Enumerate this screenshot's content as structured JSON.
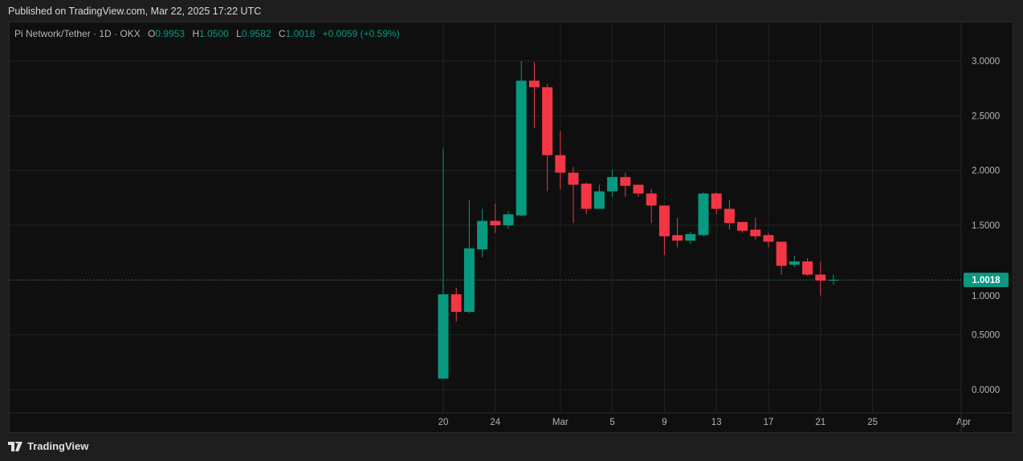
{
  "published": "Published on TradingView.com, Mar 22, 2025 17:22 UTC",
  "legend": {
    "symbol": "Pi Network/Tether · 1D · OKX",
    "o_label": "O",
    "o": "0.9953",
    "h_label": "H",
    "h": "1.0500",
    "l_label": "L",
    "l": "0.9582",
    "c_label": "C",
    "c": "1.0018",
    "change": "+0.0059 (+0.59%)"
  },
  "footer": {
    "brand": "TradingView"
  },
  "colors": {
    "up": "#089981",
    "down": "#f23645",
    "grid": "#222222",
    "bg": "#0f0f0f"
  },
  "chart_data": {
    "type": "candlestick",
    "title": "Pi Network/Tether · 1D · OKX",
    "ylim": [
      0,
      3
    ],
    "y_ticks": [
      "3.0000",
      "2.5000",
      "2.0000",
      "1.5000",
      "1.0000",
      "0.5000",
      "0.0000"
    ],
    "y_tick_values": [
      3,
      2.5,
      2,
      1.5,
      1,
      0.5,
      0
    ],
    "x_ticks": [
      {
        "label": "20",
        "day": 0
      },
      {
        "label": "24",
        "day": 4
      },
      {
        "label": "Mar",
        "day": 9
      },
      {
        "label": "5",
        "day": 13
      },
      {
        "label": "9",
        "day": 17
      },
      {
        "label": "13",
        "day": 21
      },
      {
        "label": "17",
        "day": 25
      },
      {
        "label": "21",
        "day": 29
      },
      {
        "label": "25",
        "day": 33
      },
      {
        "label": "Apr",
        "day": 40
      }
    ],
    "last_price": "1.0018",
    "last_price_value": 1.0018,
    "candles": [
      {
        "date": "Feb 20",
        "o": 0.1,
        "h": 2.2,
        "l": 0.1,
        "c": 0.87
      },
      {
        "date": "Feb 21",
        "o": 0.87,
        "h": 0.93,
        "l": 0.62,
        "c": 0.71
      },
      {
        "date": "Feb 22",
        "o": 0.71,
        "h": 1.73,
        "l": 0.7,
        "c": 1.29
      },
      {
        "date": "Feb 23",
        "o": 1.28,
        "h": 1.65,
        "l": 1.21,
        "c": 1.54
      },
      {
        "date": "Feb 24",
        "o": 1.54,
        "h": 1.7,
        "l": 1.43,
        "c": 1.5
      },
      {
        "date": "Feb 25",
        "o": 1.5,
        "h": 1.63,
        "l": 1.47,
        "c": 1.6
      },
      {
        "date": "Feb 26",
        "o": 1.59,
        "h": 3.0,
        "l": 1.58,
        "c": 2.82
      },
      {
        "date": "Feb 27",
        "o": 2.82,
        "h": 2.99,
        "l": 2.39,
        "c": 2.76
      },
      {
        "date": "Feb 28",
        "o": 2.76,
        "h": 2.79,
        "l": 1.81,
        "c": 2.14
      },
      {
        "date": "Mar 1",
        "o": 2.14,
        "h": 2.36,
        "l": 1.83,
        "c": 1.98
      },
      {
        "date": "Mar 2",
        "o": 1.98,
        "h": 2.03,
        "l": 1.52,
        "c": 1.87
      },
      {
        "date": "Mar 3",
        "o": 1.88,
        "h": 1.89,
        "l": 1.6,
        "c": 1.65
      },
      {
        "date": "Mar 4",
        "o": 1.65,
        "h": 1.87,
        "l": 1.65,
        "c": 1.81
      },
      {
        "date": "Mar 5",
        "o": 1.81,
        "h": 2.01,
        "l": 1.76,
        "c": 1.94
      },
      {
        "date": "Mar 6",
        "o": 1.94,
        "h": 1.98,
        "l": 1.76,
        "c": 1.86
      },
      {
        "date": "Mar 7",
        "o": 1.87,
        "h": 1.87,
        "l": 1.76,
        "c": 1.79
      },
      {
        "date": "Mar 8",
        "o": 1.79,
        "h": 1.83,
        "l": 1.52,
        "c": 1.68
      },
      {
        "date": "Mar 9",
        "o": 1.68,
        "h": 1.68,
        "l": 1.23,
        "c": 1.4
      },
      {
        "date": "Mar 10",
        "o": 1.41,
        "h": 1.57,
        "l": 1.3,
        "c": 1.36
      },
      {
        "date": "Mar 11",
        "o": 1.36,
        "h": 1.44,
        "l": 1.33,
        "c": 1.42
      },
      {
        "date": "Mar 12",
        "o": 1.41,
        "h": 1.8,
        "l": 1.4,
        "c": 1.79
      },
      {
        "date": "Mar 13",
        "o": 1.79,
        "h": 1.8,
        "l": 1.6,
        "c": 1.65
      },
      {
        "date": "Mar 14",
        "o": 1.65,
        "h": 1.73,
        "l": 1.46,
        "c": 1.52
      },
      {
        "date": "Mar 15",
        "o": 1.53,
        "h": 1.53,
        "l": 1.43,
        "c": 1.45
      },
      {
        "date": "Mar 16",
        "o": 1.46,
        "h": 1.57,
        "l": 1.37,
        "c": 1.4
      },
      {
        "date": "Mar 17",
        "o": 1.41,
        "h": 1.43,
        "l": 1.3,
        "c": 1.35
      },
      {
        "date": "Mar 18",
        "o": 1.35,
        "h": 1.35,
        "l": 1.05,
        "c": 1.13
      },
      {
        "date": "Mar 19",
        "o": 1.14,
        "h": 1.22,
        "l": 1.12,
        "c": 1.17
      },
      {
        "date": "Mar 20",
        "o": 1.17,
        "h": 1.2,
        "l": 1.04,
        "c": 1.05
      },
      {
        "date": "Mar 21",
        "o": 1.05,
        "h": 1.17,
        "l": 0.86,
        "c": 0.9953
      },
      {
        "date": "Mar 22",
        "o": 0.9953,
        "h": 1.05,
        "l": 0.9582,
        "c": 1.0018
      }
    ]
  }
}
